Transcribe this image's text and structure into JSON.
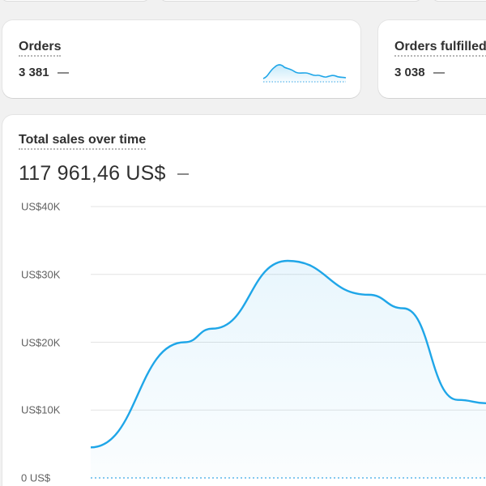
{
  "metrics": {
    "orders": {
      "title": "Orders",
      "value": "3 381"
    },
    "orders_fulfilled": {
      "title": "Orders fulfilled",
      "value": "3 038"
    }
  },
  "sales": {
    "title": "Total sales over time",
    "total": "117 961,46 US$"
  },
  "colors": {
    "line": "#1fa6e8",
    "grid": "#e3e3e3",
    "baseline": "#5bb6ea"
  },
  "chart_data": {
    "type": "area",
    "title": "Total sales over time",
    "ylabel": "",
    "xlabel": "",
    "y_tick_labels": [
      "0 US$",
      "US$10K",
      "US$20K",
      "US$30K",
      "US$40K"
    ],
    "y_ticks": [
      0,
      10000,
      20000,
      30000,
      40000
    ],
    "ylim": [
      0,
      40000
    ],
    "grid": true,
    "series": [
      {
        "values": [
          4500,
          20000,
          22000,
          32000,
          27000,
          25000,
          11500,
          11000
        ]
      }
    ]
  }
}
